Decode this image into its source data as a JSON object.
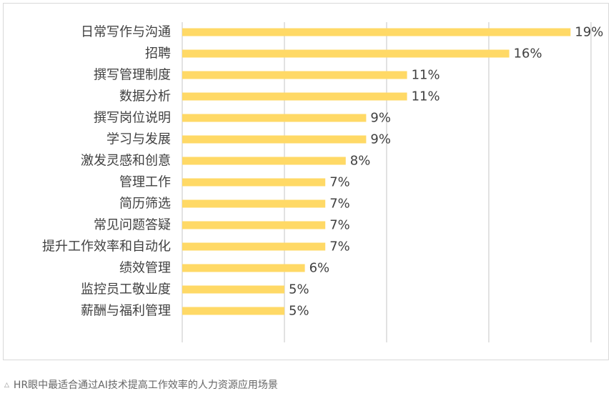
{
  "chart_data": {
    "type": "bar",
    "orientation": "horizontal",
    "categories": [
      "日常写作与沟通",
      "招聘",
      "撰写管理制度",
      "数据分析",
      "撰写岗位说明",
      "学习与发展",
      "激发灵感和创意",
      "管理工作",
      "简历筛选",
      "常见问题答疑",
      "提升工作效率和自动化",
      "绩效管理",
      "监控员工敬业度",
      "薪酬与福利管理"
    ],
    "values": [
      19,
      16,
      11,
      11,
      9,
      9,
      8,
      7,
      7,
      7,
      7,
      6,
      5,
      5
    ],
    "value_labels": [
      "19%",
      "16%",
      "11%",
      "11%",
      "9%",
      "9%",
      "8%",
      "7%",
      "7%",
      "7%",
      "7%",
      "6%",
      "5%",
      "5%"
    ],
    "title": "",
    "xlabel": "",
    "ylabel": "",
    "xlim": [
      0,
      20
    ],
    "x_gridlines": [
      0,
      5,
      10,
      15,
      20
    ],
    "grid": true,
    "legend": "none",
    "bar_color": "#FFD966",
    "grid_color": "#D9D9D9"
  },
  "caption": {
    "icon": "triangle-icon",
    "text": "HR眼中最适合通过AI技术提高工作效率的人力资源应用场景"
  }
}
